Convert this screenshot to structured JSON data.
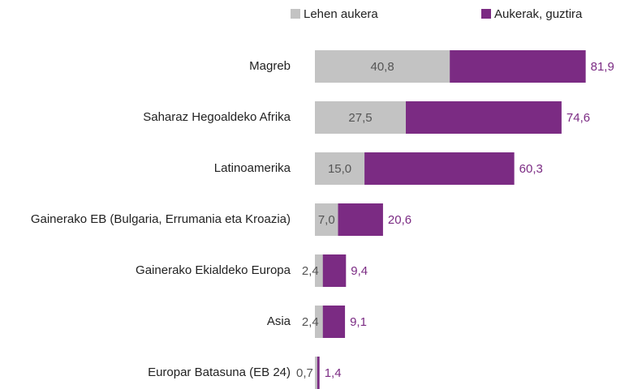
{
  "chart_data": {
    "type": "bar",
    "orientation": "horizontal",
    "categories": [
      "Magreb",
      "Saharaz Hegoaldeko Afrika",
      "Latinoamerika",
      "Gainerako EB (Bulgaria, Errumania eta Kroazia)",
      "Gainerako Ekialdeko Europa",
      "Asia",
      "Europar Batasuna (EB 24)"
    ],
    "series": [
      {
        "name": "Lehen aukera",
        "color": "#c3c3c3",
        "values": [
          40.8,
          27.5,
          15.0,
          7.0,
          2.4,
          2.4,
          0.7
        ],
        "value_labels": [
          "40,8",
          "27,5",
          "15,0",
          "7,0",
          "2,4",
          "2,4",
          "0,7"
        ]
      },
      {
        "name": "Aukerak, guztira",
        "color": "#7b2b83",
        "values": [
          81.9,
          74.6,
          60.3,
          20.6,
          9.4,
          9.1,
          1.4
        ],
        "value_labels": [
          "81,9",
          "74,6",
          "60,3",
          "20,6",
          "9,4",
          "9,1",
          "1,4"
        ]
      }
    ],
    "xlim": [
      0,
      95
    ],
    "legend": "top"
  }
}
